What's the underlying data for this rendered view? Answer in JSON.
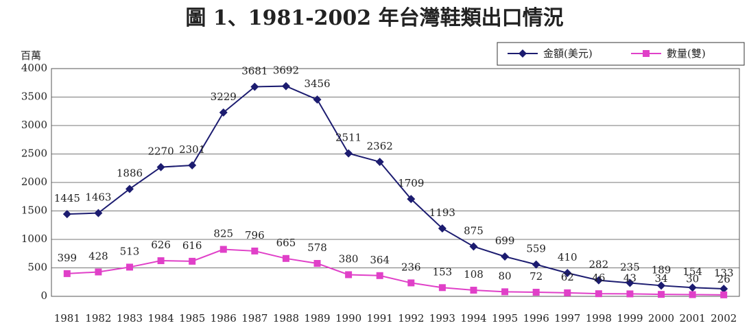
{
  "chart_data": {
    "type": "line",
    "title": "圖 1、1981-2002 年台灣鞋類出口情況",
    "y_label": "百萬",
    "categories": [
      "1981",
      "1982",
      "1983",
      "1984",
      "1985",
      "1986",
      "1987",
      "1988",
      "1989",
      "1990",
      "1991",
      "1992",
      "1993",
      "1994",
      "1995",
      "1996",
      "1997",
      "1998",
      "1999",
      "2000",
      "2001",
      "2002"
    ],
    "series": [
      {
        "name": "金額(美元)",
        "color": "#1c1c70",
        "marker": "diamond",
        "values": [
          1445,
          1463,
          1886,
          2270,
          2301,
          3229,
          3681,
          3692,
          3456,
          2511,
          2362,
          1709,
          1193,
          875,
          699,
          559,
          410,
          282,
          235,
          189,
          154,
          133
        ]
      },
      {
        "name": "數量(雙)",
        "color": "#e040c8",
        "marker": "square",
        "values": [
          399,
          428,
          513,
          626,
          616,
          825,
          796,
          665,
          578,
          380,
          364,
          236,
          153,
          108,
          80,
          72,
          62,
          46,
          43,
          34,
          30,
          26
        ]
      }
    ],
    "ylim": [
      0,
      4000
    ],
    "yticks": [
      0,
      500,
      1000,
      1500,
      2000,
      2500,
      3000,
      3500,
      4000
    ],
    "grid": true,
    "legend": "top-right"
  }
}
